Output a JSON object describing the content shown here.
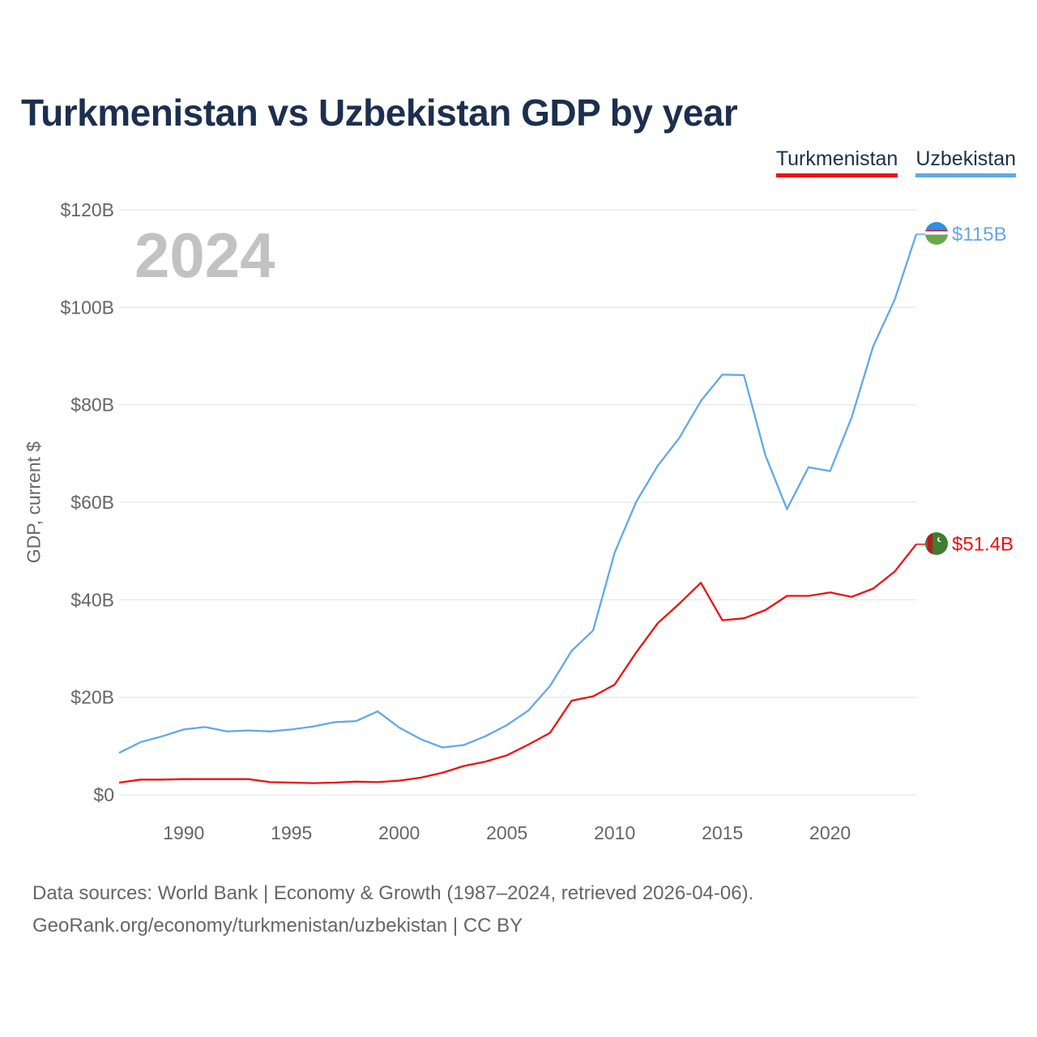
{
  "title": "Turkmenistan vs Uzbekistan GDP by year",
  "current_year": "2024",
  "legend": {
    "turkmenistan": "Turkmenistan",
    "uzbekistan": "Uzbekistan"
  },
  "colors": {
    "turkmenistan": "#ee1111",
    "uzbekistan": "#62a8e8",
    "title": "#1c2f4f",
    "year": "#c2c2c2"
  },
  "source_line1": "Data sources: World Bank | Economy & Growth (1987–2024, retrieved 2026-04-06).",
  "source_line2": "GeoRank.org/economy/turkmenistan/uzbekistan | CC BY",
  "chart_data": {
    "type": "line",
    "title": "Turkmenistan vs Uzbekistan GDP by year",
    "xlabel": "",
    "ylabel": "GDP, current $",
    "xlim": [
      1987,
      2024
    ],
    "ylim": [
      0,
      120
    ],
    "y_unit": "billion USD",
    "y_ticks": [
      0,
      20,
      40,
      60,
      80,
      100,
      120
    ],
    "y_tick_labels": [
      "$0",
      "$20B",
      "$40B",
      "$60B",
      "$80B",
      "$100B",
      "$120B"
    ],
    "x_ticks": [
      1990,
      1995,
      2000,
      2005,
      2010,
      2015,
      2020
    ],
    "x_tick_labels": [
      "1990",
      "1995",
      "2000",
      "2005",
      "2010",
      "2015",
      "2020"
    ],
    "grid": true,
    "legend_position": "top-right",
    "x": [
      1987,
      1988,
      1989,
      1990,
      1991,
      1992,
      1993,
      1994,
      1995,
      1996,
      1997,
      1998,
      1999,
      2000,
      2001,
      2002,
      2003,
      2004,
      2005,
      2006,
      2007,
      2008,
      2009,
      2010,
      2011,
      2012,
      2013,
      2014,
      2015,
      2016,
      2017,
      2018,
      2019,
      2020,
      2021,
      2022,
      2023,
      2024
    ],
    "series": [
      {
        "name": "Uzbekistan",
        "color": "#62a8e8",
        "end_label": "$115B",
        "values": [
          8.6,
          10.8,
          12.0,
          13.4,
          13.9,
          13.0,
          13.2,
          13.0,
          13.4,
          14.0,
          14.9,
          15.1,
          17.1,
          13.8,
          11.4,
          9.7,
          10.2,
          12.0,
          14.3,
          17.3,
          22.3,
          29.5,
          33.7,
          49.7,
          60.1,
          67.5,
          73.2,
          80.8,
          86.2,
          86.1,
          69.6,
          58.6,
          67.2,
          66.4,
          77.4,
          92.0,
          101.6,
          115.0
        ]
      },
      {
        "name": "Turkmenistan",
        "color": "#ee1111",
        "end_label": "$51.4B",
        "values": [
          2.5,
          3.1,
          3.1,
          3.2,
          3.2,
          3.2,
          3.2,
          2.6,
          2.5,
          2.4,
          2.5,
          2.7,
          2.6,
          2.9,
          3.5,
          4.5,
          5.9,
          6.8,
          8.1,
          10.3,
          12.7,
          19.3,
          20.2,
          22.6,
          29.2,
          35.2,
          39.2,
          43.5,
          35.8,
          36.2,
          37.9,
          40.8,
          40.8,
          41.5,
          40.6,
          42.3,
          45.8,
          51.4
        ]
      }
    ]
  }
}
